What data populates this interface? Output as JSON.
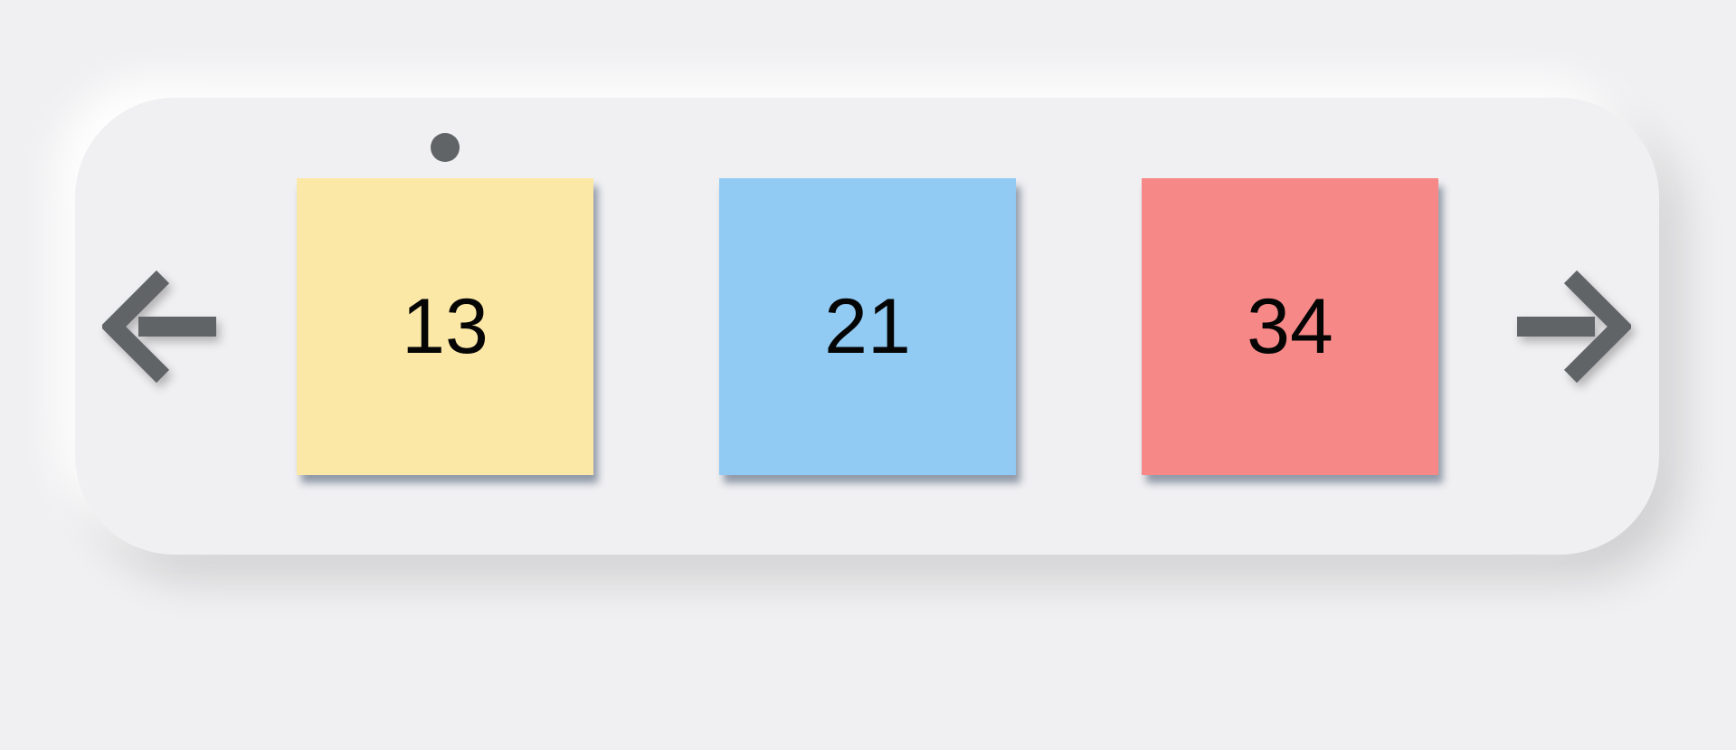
{
  "carousel": {
    "prev_icon": "arrow-left-icon",
    "next_icon": "arrow-right-icon",
    "arrow_color": "#606466",
    "active_index": 0,
    "cards": [
      {
        "number": "13",
        "color": "#fbe7a6"
      },
      {
        "number": "21",
        "color": "#91caf3"
      },
      {
        "number": "34",
        "color": "#f68988"
      }
    ]
  }
}
